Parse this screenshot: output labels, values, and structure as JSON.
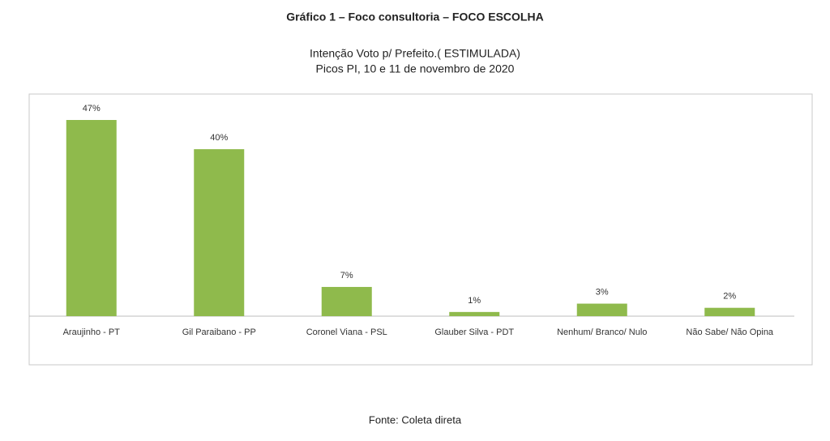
{
  "chart_data": {
    "type": "bar",
    "title": "Gráfico 1 – Foco consultoria – FOCO ESCOLHA",
    "subtitle": [
      "Intenção Voto p/ Prefeito.( ESTIMULADA)",
      "Picos PI, 10 e 11 de novembro de 2020"
    ],
    "categories": [
      "Araujinho - PT",
      "Gil Paraibano - PP",
      "Coronel Viana - PSL",
      "Glauber Silva - PDT",
      "Nenhum/ Branco/ Nulo",
      "Não Sabe/ Não Opina"
    ],
    "values": [
      47,
      40,
      7,
      1,
      3,
      2
    ],
    "value_labels": [
      "47%",
      "40%",
      "7%",
      "1%",
      "3%",
      "2%"
    ],
    "color": "#8fba4c",
    "source": "Fonte: Coleta direta"
  }
}
